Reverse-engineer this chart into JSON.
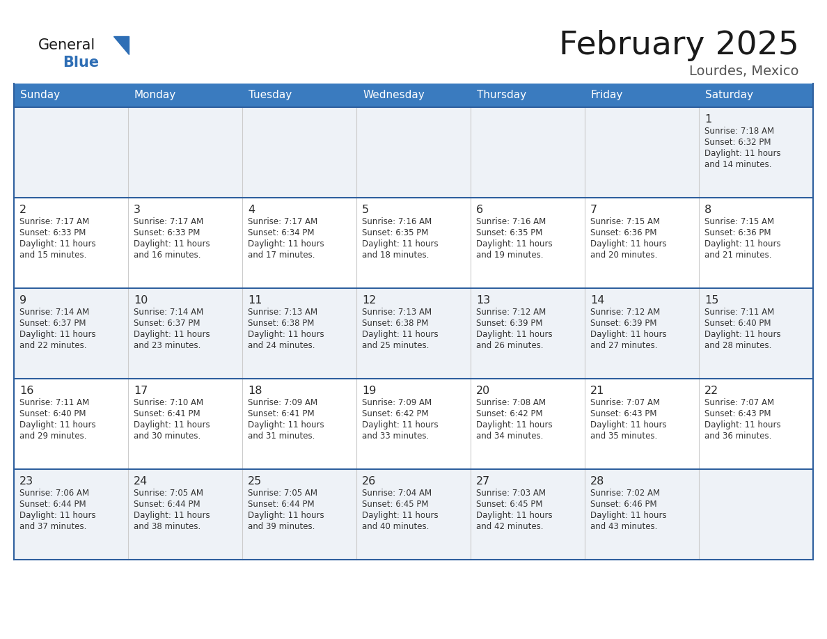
{
  "title": "February 2025",
  "subtitle": "Lourdes, Mexico",
  "header_color": "#3a7bbf",
  "header_text_color": "#ffffff",
  "row_bg_odd": "#eef2f7",
  "row_bg_even": "#ffffff",
  "border_color": "#2e5f9e",
  "inner_border_color": "#cccccc",
  "day_headers": [
    "Sunday",
    "Monday",
    "Tuesday",
    "Wednesday",
    "Thursday",
    "Friday",
    "Saturday"
  ],
  "title_color": "#1a1a1a",
  "subtitle_color": "#555555",
  "day_number_color": "#2a2a2a",
  "text_color": "#333333",
  "logo_general_color": "#1a1a1a",
  "logo_blue_color": "#2e6eb5",
  "calendar_data": [
    [
      null,
      null,
      null,
      null,
      null,
      null,
      {
        "day": 1,
        "sunrise": "7:18 AM",
        "sunset": "6:32 PM",
        "daylight": "11 hours and 14 minutes."
      }
    ],
    [
      {
        "day": 2,
        "sunrise": "7:17 AM",
        "sunset": "6:33 PM",
        "daylight": "11 hours and 15 minutes."
      },
      {
        "day": 3,
        "sunrise": "7:17 AM",
        "sunset": "6:33 PM",
        "daylight": "11 hours and 16 minutes."
      },
      {
        "day": 4,
        "sunrise": "7:17 AM",
        "sunset": "6:34 PM",
        "daylight": "11 hours and 17 minutes."
      },
      {
        "day": 5,
        "sunrise": "7:16 AM",
        "sunset": "6:35 PM",
        "daylight": "11 hours and 18 minutes."
      },
      {
        "day": 6,
        "sunrise": "7:16 AM",
        "sunset": "6:35 PM",
        "daylight": "11 hours and 19 minutes."
      },
      {
        "day": 7,
        "sunrise": "7:15 AM",
        "sunset": "6:36 PM",
        "daylight": "11 hours and 20 minutes."
      },
      {
        "day": 8,
        "sunrise": "7:15 AM",
        "sunset": "6:36 PM",
        "daylight": "11 hours and 21 minutes."
      }
    ],
    [
      {
        "day": 9,
        "sunrise": "7:14 AM",
        "sunset": "6:37 PM",
        "daylight": "11 hours and 22 minutes."
      },
      {
        "day": 10,
        "sunrise": "7:14 AM",
        "sunset": "6:37 PM",
        "daylight": "11 hours and 23 minutes."
      },
      {
        "day": 11,
        "sunrise": "7:13 AM",
        "sunset": "6:38 PM",
        "daylight": "11 hours and 24 minutes."
      },
      {
        "day": 12,
        "sunrise": "7:13 AM",
        "sunset": "6:38 PM",
        "daylight": "11 hours and 25 minutes."
      },
      {
        "day": 13,
        "sunrise": "7:12 AM",
        "sunset": "6:39 PM",
        "daylight": "11 hours and 26 minutes."
      },
      {
        "day": 14,
        "sunrise": "7:12 AM",
        "sunset": "6:39 PM",
        "daylight": "11 hours and 27 minutes."
      },
      {
        "day": 15,
        "sunrise": "7:11 AM",
        "sunset": "6:40 PM",
        "daylight": "11 hours and 28 minutes."
      }
    ],
    [
      {
        "day": 16,
        "sunrise": "7:11 AM",
        "sunset": "6:40 PM",
        "daylight": "11 hours and 29 minutes."
      },
      {
        "day": 17,
        "sunrise": "7:10 AM",
        "sunset": "6:41 PM",
        "daylight": "11 hours and 30 minutes."
      },
      {
        "day": 18,
        "sunrise": "7:09 AM",
        "sunset": "6:41 PM",
        "daylight": "11 hours and 31 minutes."
      },
      {
        "day": 19,
        "sunrise": "7:09 AM",
        "sunset": "6:42 PM",
        "daylight": "11 hours and 33 minutes."
      },
      {
        "day": 20,
        "sunrise": "7:08 AM",
        "sunset": "6:42 PM",
        "daylight": "11 hours and 34 minutes."
      },
      {
        "day": 21,
        "sunrise": "7:07 AM",
        "sunset": "6:43 PM",
        "daylight": "11 hours and 35 minutes."
      },
      {
        "day": 22,
        "sunrise": "7:07 AM",
        "sunset": "6:43 PM",
        "daylight": "11 hours and 36 minutes."
      }
    ],
    [
      {
        "day": 23,
        "sunrise": "7:06 AM",
        "sunset": "6:44 PM",
        "daylight": "11 hours and 37 minutes."
      },
      {
        "day": 24,
        "sunrise": "7:05 AM",
        "sunset": "6:44 PM",
        "daylight": "11 hours and 38 minutes."
      },
      {
        "day": 25,
        "sunrise": "7:05 AM",
        "sunset": "6:44 PM",
        "daylight": "11 hours and 39 minutes."
      },
      {
        "day": 26,
        "sunrise": "7:04 AM",
        "sunset": "6:45 PM",
        "daylight": "11 hours and 40 minutes."
      },
      {
        "day": 27,
        "sunrise": "7:03 AM",
        "sunset": "6:45 PM",
        "daylight": "11 hours and 42 minutes."
      },
      {
        "day": 28,
        "sunrise": "7:02 AM",
        "sunset": "6:46 PM",
        "daylight": "11 hours and 43 minutes."
      },
      null
    ]
  ]
}
